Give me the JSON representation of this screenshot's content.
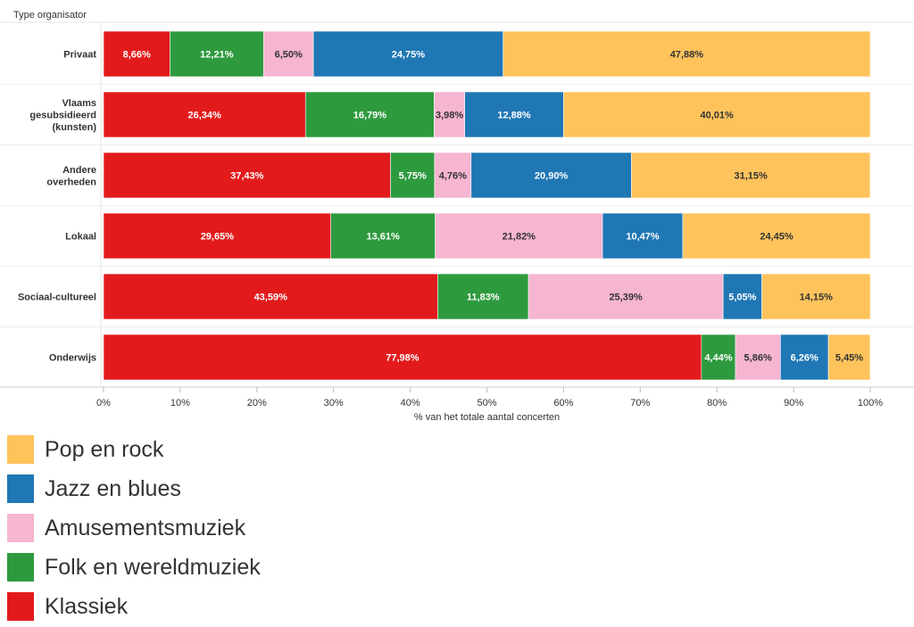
{
  "chart_data": {
    "type": "bar",
    "orientation": "horizontal",
    "stacked": true,
    "ylabel": "Type organisator",
    "xlabel": "% van het totale aantal concerten",
    "xlim": [
      0,
      100
    ],
    "x_ticks": [
      "0%",
      "10%",
      "20%",
      "30%",
      "40%",
      "50%",
      "60%",
      "70%",
      "80%",
      "90%",
      "100%"
    ],
    "categories": [
      "Privaat",
      "Vlaams gesubsidieerd (kunsten)",
      "Andere overheden",
      "Lokaal",
      "Sociaal-cultureel",
      "Onderwijs"
    ],
    "category_lines": [
      [
        "Privaat"
      ],
      [
        "Vlaams",
        "gesubsidieerd",
        "(kunsten)"
      ],
      [
        "Andere",
        "overheden"
      ],
      [
        "Lokaal"
      ],
      [
        "Sociaal-cultureel"
      ],
      [
        "Onderwijs"
      ]
    ],
    "series": [
      {
        "name": "Klassiek",
        "color": "#e31a1c",
        "label_color": "#ffffff",
        "values": [
          8.66,
          26.34,
          37.43,
          29.65,
          43.59,
          77.98
        ],
        "labels": [
          "8,66%",
          "26,34%",
          "37,43%",
          "29,65%",
          "43,59%",
          "77,98%"
        ]
      },
      {
        "name": "Folk en wereldmuziek",
        "color": "#2e9a3e",
        "label_color": "#ffffff",
        "values": [
          12.21,
          16.79,
          5.75,
          13.61,
          11.83,
          4.44
        ],
        "labels": [
          "12,21%",
          "16,79%",
          "5,75%",
          "13,61%",
          "11,83%",
          "4,44%"
        ]
      },
      {
        "name": "Amusementsmuziek",
        "color": "#f6b5d1",
        "label_color": "#333333",
        "values": [
          6.5,
          3.98,
          4.76,
          21.82,
          25.39,
          5.86
        ],
        "labels": [
          "6,50%",
          "3,98%",
          "4,76%",
          "21,82%",
          "25,39%",
          "5,86%"
        ]
      },
      {
        "name": "Jazz en blues",
        "color": "#1f77b4",
        "label_color": "#ffffff",
        "values": [
          24.75,
          12.88,
          20.9,
          10.47,
          5.05,
          6.26
        ],
        "labels": [
          "24,75%",
          "12,88%",
          "20,90%",
          "10,47%",
          "5,05%",
          "6,26%"
        ]
      },
      {
        "name": "Pop en rock",
        "color": "#ffc35c",
        "label_color": "#333333",
        "values": [
          47.88,
          40.01,
          31.15,
          24.45,
          14.15,
          5.45
        ],
        "labels": [
          "47,88%",
          "40,01%",
          "31,15%",
          "24,45%",
          "14,15%",
          "5,45%"
        ]
      }
    ],
    "legend": {
      "placement": "bottom-left",
      "order": [
        "Pop en rock",
        "Jazz en blues",
        "Amusementsmuziek",
        "Folk en wereldmuziek",
        "Klassiek"
      ]
    },
    "grid": false
  }
}
